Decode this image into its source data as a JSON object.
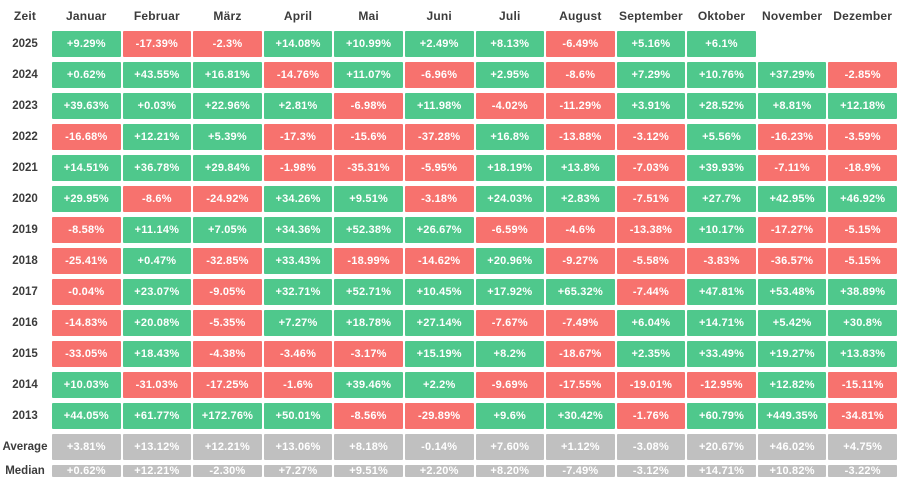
{
  "colors": {
    "green": "#4fc88c",
    "red": "#f7726e",
    "gray": "#c0c0c0",
    "label_text": "#3c3c3c",
    "cell_text": "#ffffff"
  },
  "table": {
    "columns": [
      "Zeit",
      "Januar",
      "Februar",
      "März",
      "April",
      "Mai",
      "Juni",
      "Juli",
      "August",
      "September",
      "Oktober",
      "November",
      "Dezember"
    ],
    "rows": [
      {
        "label": "2025",
        "type": "year",
        "cells": [
          "+9.29%",
          "-17.39%",
          "-2.3%",
          "+14.08%",
          "+10.99%",
          "+2.49%",
          "+8.13%",
          "-6.49%",
          "+5.16%",
          "+6.1%",
          null,
          null
        ]
      },
      {
        "label": "2024",
        "type": "year",
        "cells": [
          "+0.62%",
          "+43.55%",
          "+16.81%",
          "-14.76%",
          "+11.07%",
          "-6.96%",
          "+2.95%",
          "-8.6%",
          "+7.29%",
          "+10.76%",
          "+37.29%",
          "-2.85%"
        ]
      },
      {
        "label": "2023",
        "type": "year",
        "cells": [
          "+39.63%",
          "+0.03%",
          "+22.96%",
          "+2.81%",
          "-6.98%",
          "+11.98%",
          "-4.02%",
          "-11.29%",
          "+3.91%",
          "+28.52%",
          "+8.81%",
          "+12.18%"
        ]
      },
      {
        "label": "2022",
        "type": "year",
        "cells": [
          "-16.68%",
          "+12.21%",
          "+5.39%",
          "-17.3%",
          "-15.6%",
          "-37.28%",
          "+16.8%",
          "-13.88%",
          "-3.12%",
          "+5.56%",
          "-16.23%",
          "-3.59%"
        ]
      },
      {
        "label": "2021",
        "type": "year",
        "cells": [
          "+14.51%",
          "+36.78%",
          "+29.84%",
          "-1.98%",
          "-35.31%",
          "-5.95%",
          "+18.19%",
          "+13.8%",
          "-7.03%",
          "+39.93%",
          "-7.11%",
          "-18.9%"
        ]
      },
      {
        "label": "2020",
        "type": "year",
        "cells": [
          "+29.95%",
          "-8.6%",
          "-24.92%",
          "+34.26%",
          "+9.51%",
          "-3.18%",
          "+24.03%",
          "+2.83%",
          "-7.51%",
          "+27.7%",
          "+42.95%",
          "+46.92%"
        ]
      },
      {
        "label": "2019",
        "type": "year",
        "cells": [
          "-8.58%",
          "+11.14%",
          "+7.05%",
          "+34.36%",
          "+52.38%",
          "+26.67%",
          "-6.59%",
          "-4.6%",
          "-13.38%",
          "+10.17%",
          "-17.27%",
          "-5.15%"
        ]
      },
      {
        "label": "2018",
        "type": "year",
        "cells": [
          "-25.41%",
          "+0.47%",
          "-32.85%",
          "+33.43%",
          "-18.99%",
          "-14.62%",
          "+20.96%",
          "-9.27%",
          "-5.58%",
          "-3.83%",
          "-36.57%",
          "-5.15%"
        ]
      },
      {
        "label": "2017",
        "type": "year",
        "cells": [
          "-0.04%",
          "+23.07%",
          "-9.05%",
          "+32.71%",
          "+52.71%",
          "+10.45%",
          "+17.92%",
          "+65.32%",
          "-7.44%",
          "+47.81%",
          "+53.48%",
          "+38.89%"
        ]
      },
      {
        "label": "2016",
        "type": "year",
        "cells": [
          "-14.83%",
          "+20.08%",
          "-5.35%",
          "+7.27%",
          "+18.78%",
          "+27.14%",
          "-7.67%",
          "-7.49%",
          "+6.04%",
          "+14.71%",
          "+5.42%",
          "+30.8%"
        ]
      },
      {
        "label": "2015",
        "type": "year",
        "cells": [
          "-33.05%",
          "+18.43%",
          "-4.38%",
          "-3.46%",
          "-3.17%",
          "+15.19%",
          "+8.2%",
          "-18.67%",
          "+2.35%",
          "+33.49%",
          "+19.27%",
          "+13.83%"
        ]
      },
      {
        "label": "2014",
        "type": "year",
        "cells": [
          "+10.03%",
          "-31.03%",
          "-17.25%",
          "-1.6%",
          "+39.46%",
          "+2.2%",
          "-9.69%",
          "-17.55%",
          "-19.01%",
          "-12.95%",
          "+12.82%",
          "-15.11%"
        ]
      },
      {
        "label": "2013",
        "type": "year",
        "cells": [
          "+44.05%",
          "+61.77%",
          "+172.76%",
          "+50.01%",
          "-8.56%",
          "-29.89%",
          "+9.6%",
          "+30.42%",
          "-1.76%",
          "+60.79%",
          "+449.35%",
          "-34.81%"
        ]
      },
      {
        "label": "Average",
        "type": "summary",
        "cells": [
          "+3.81%",
          "+13.12%",
          "+12.21%",
          "+13.06%",
          "+8.18%",
          "-0.14%",
          "+7.60%",
          "+1.12%",
          "-3.08%",
          "+20.67%",
          "+46.02%",
          "+4.75%"
        ]
      },
      {
        "label": "Median",
        "type": "summary",
        "cells": [
          "+0.62%",
          "+12.21%",
          "-2.30%",
          "+7.27%",
          "+9.51%",
          "+2.20%",
          "+8.20%",
          "-7.49%",
          "-3.12%",
          "+14.71%",
          "+10.82%",
          "-3.22%"
        ]
      }
    ]
  },
  "chart_data": {
    "type": "heatmap",
    "title": "",
    "xlabel": "Zeit",
    "x_categories": [
      "Januar",
      "Februar",
      "März",
      "April",
      "Mai",
      "Juni",
      "Juli",
      "August",
      "September",
      "Oktober",
      "November",
      "Dezember"
    ],
    "y_categories": [
      "2025",
      "2024",
      "2023",
      "2022",
      "2021",
      "2020",
      "2019",
      "2018",
      "2017",
      "2016",
      "2015",
      "2014",
      "2013"
    ],
    "values_percent": [
      [
        9.29,
        -17.39,
        -2.3,
        14.08,
        10.99,
        2.49,
        8.13,
        -6.49,
        5.16,
        6.1,
        null,
        null
      ],
      [
        0.62,
        43.55,
        16.81,
        -14.76,
        11.07,
        -6.96,
        2.95,
        -8.6,
        7.29,
        10.76,
        37.29,
        -2.85
      ],
      [
        39.63,
        0.03,
        22.96,
        2.81,
        -6.98,
        11.98,
        -4.02,
        -11.29,
        3.91,
        28.52,
        8.81,
        12.18
      ],
      [
        -16.68,
        12.21,
        5.39,
        -17.3,
        -15.6,
        -37.28,
        16.8,
        -13.88,
        -3.12,
        5.56,
        -16.23,
        -3.59
      ],
      [
        14.51,
        36.78,
        29.84,
        -1.98,
        -35.31,
        -5.95,
        18.19,
        13.8,
        -7.03,
        39.93,
        -7.11,
        -18.9
      ],
      [
        29.95,
        -8.6,
        -24.92,
        34.26,
        9.51,
        -3.18,
        24.03,
        2.83,
        -7.51,
        27.7,
        42.95,
        46.92
      ],
      [
        -8.58,
        11.14,
        7.05,
        34.36,
        52.38,
        26.67,
        -6.59,
        -4.6,
        -13.38,
        10.17,
        -17.27,
        -5.15
      ],
      [
        -25.41,
        0.47,
        -32.85,
        33.43,
        -18.99,
        -14.62,
        20.96,
        -9.27,
        -5.58,
        -3.83,
        -36.57,
        -5.15
      ],
      [
        -0.04,
        23.07,
        -9.05,
        32.71,
        52.71,
        10.45,
        17.92,
        65.32,
        -7.44,
        47.81,
        53.48,
        38.89
      ],
      [
        -14.83,
        20.08,
        -5.35,
        7.27,
        18.78,
        27.14,
        -7.67,
        -7.49,
        6.04,
        14.71,
        5.42,
        30.8
      ],
      [
        -33.05,
        18.43,
        -4.38,
        -3.46,
        -3.17,
        15.19,
        8.2,
        -18.67,
        2.35,
        33.49,
        19.27,
        13.83
      ],
      [
        10.03,
        -31.03,
        -17.25,
        -1.6,
        39.46,
        2.2,
        -9.69,
        -17.55,
        -19.01,
        -12.95,
        12.82,
        -15.11
      ],
      [
        44.05,
        61.77,
        172.76,
        50.01,
        -8.56,
        -29.89,
        9.6,
        30.42,
        -1.76,
        60.79,
        449.35,
        -34.81
      ]
    ],
    "average_percent": [
      3.81,
      13.12,
      12.21,
      13.06,
      8.18,
      -0.14,
      7.6,
      1.12,
      -3.08,
      20.67,
      46.02,
      4.75
    ],
    "median_percent": [
      0.62,
      12.21,
      -2.3,
      7.27,
      9.51,
      2.2,
      8.2,
      -7.49,
      -3.12,
      14.71,
      10.82,
      -3.22
    ],
    "color_rule": "positive=green, negative=red, summary rows=gray",
    "legend": "none",
    "grid": "white gaps between cells"
  }
}
